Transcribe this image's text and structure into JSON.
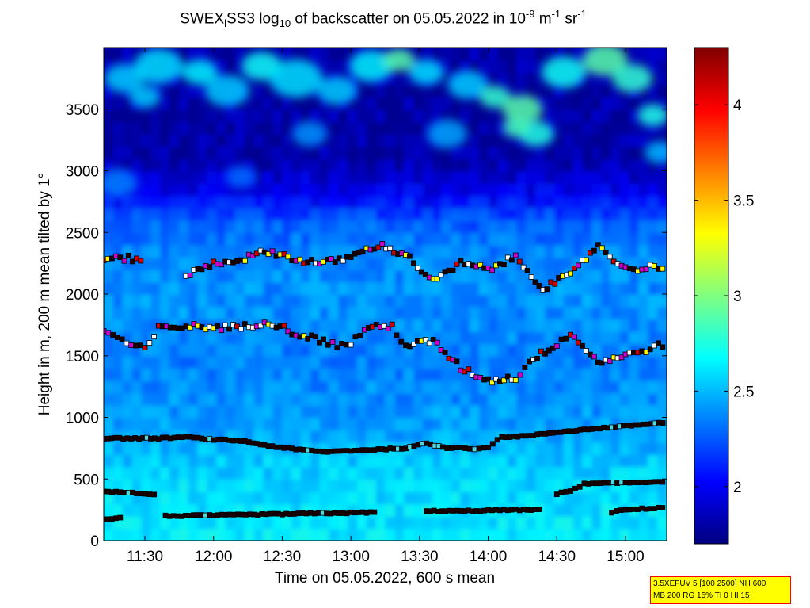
{
  "chart_data": {
    "type": "heatmap",
    "title": {
      "p1": "SWEX",
      "p1sub": "l",
      "p2": "SS3 log",
      "p2sub": "10",
      "p3": " of backscatter on 05.05.2022 in 10",
      "p3sup": "-9",
      "p4": " m",
      "p4sup": "-1",
      "p5": " sr",
      "p5sup": "-1"
    },
    "xlabel": "Time on 05.05.2022, 600 s mean",
    "ylabel": "Height in m, 200 m mean tilted by 1°",
    "x_range_hours": [
      11.2,
      15.3
    ],
    "x_ticks": [
      {
        "label": "11:30",
        "hour": 11.5
      },
      {
        "label": "12:00",
        "hour": 12.0
      },
      {
        "label": "12:30",
        "hour": 12.5
      },
      {
        "label": "13:00",
        "hour": 13.0
      },
      {
        "label": "13:30",
        "hour": 13.5
      },
      {
        "label": "14:00",
        "hour": 14.0
      },
      {
        "label": "14:30",
        "hour": 14.5
      },
      {
        "label": "15:00",
        "hour": 15.0
      }
    ],
    "ylim": [
      0,
      4000
    ],
    "y_ticks": [
      0,
      500,
      1000,
      1500,
      2000,
      2500,
      3000,
      3500
    ],
    "colorbar": {
      "range": [
        1.7,
        4.3
      ],
      "ticks": [
        2,
        2.5,
        3,
        3.5,
        4
      ],
      "colormap": "jet"
    },
    "cloud_base_layers": [
      {
        "name": "layer-near-200m",
        "points": [
          [
            11.2,
            170
          ],
          [
            11.35,
            190
          ],
          [
            11.5,
            null
          ],
          [
            11.65,
            200
          ],
          [
            12.0,
            205
          ],
          [
            12.5,
            215
          ],
          [
            13.0,
            225
          ],
          [
            13.2,
            230
          ],
          [
            13.3,
            null
          ],
          [
            13.55,
            240
          ],
          [
            13.8,
            240
          ],
          [
            14.0,
            245
          ],
          [
            14.2,
            250
          ],
          [
            14.4,
            250
          ],
          [
            14.45,
            null
          ],
          [
            14.9,
            230
          ],
          [
            15.0,
            250
          ],
          [
            15.3,
            270
          ]
        ]
      },
      {
        "name": "layer-near-400m",
        "points": [
          [
            11.2,
            400
          ],
          [
            11.35,
            390
          ],
          [
            11.5,
            380
          ],
          [
            11.6,
            375
          ],
          [
            11.61,
            null
          ],
          [
            14.5,
            380
          ],
          [
            14.6,
            400
          ],
          [
            14.7,
            460
          ],
          [
            15.0,
            470
          ],
          [
            15.3,
            480
          ]
        ]
      },
      {
        "name": "layer-near-800m",
        "points": [
          [
            11.2,
            830
          ],
          [
            11.4,
            830
          ],
          [
            11.6,
            830
          ],
          [
            11.8,
            840
          ],
          [
            12.0,
            820
          ],
          [
            12.2,
            810
          ],
          [
            12.4,
            770
          ],
          [
            12.6,
            740
          ],
          [
            12.8,
            720
          ],
          [
            13.0,
            730
          ],
          [
            13.2,
            740
          ],
          [
            13.4,
            750
          ],
          [
            13.55,
            790
          ],
          [
            13.7,
            750
          ],
          [
            13.8,
            760
          ],
          [
            13.9,
            740
          ],
          [
            14.0,
            760
          ],
          [
            14.1,
            840
          ],
          [
            14.3,
            850
          ],
          [
            14.5,
            880
          ],
          [
            14.7,
            900
          ],
          [
            14.9,
            920
          ],
          [
            15.1,
            940
          ],
          [
            15.3,
            960
          ]
        ]
      },
      {
        "name": "layer-near-1700m",
        "points": [
          [
            11.2,
            1700
          ],
          [
            11.3,
            1650
          ],
          [
            11.4,
            1580
          ],
          [
            11.5,
            1550
          ],
          [
            11.6,
            1720
          ],
          [
            11.8,
            1740
          ],
          [
            12.0,
            1730
          ],
          [
            12.2,
            1730
          ],
          [
            12.4,
            1780
          ],
          [
            12.6,
            1680
          ],
          [
            12.8,
            1620
          ],
          [
            12.9,
            1580
          ],
          [
            13.0,
            1600
          ],
          [
            13.1,
            1720
          ],
          [
            13.3,
            1740
          ],
          [
            13.4,
            1580
          ],
          [
            13.6,
            1620
          ],
          [
            13.8,
            1400
          ],
          [
            14.0,
            1300
          ],
          [
            14.2,
            1320
          ],
          [
            14.3,
            1450
          ],
          [
            14.5,
            1600
          ],
          [
            14.6,
            1680
          ],
          [
            14.8,
            1450
          ],
          [
            15.0,
            1500
          ],
          [
            15.3,
            1600
          ]
        ]
      },
      {
        "name": "layer-near-2250m",
        "points": [
          [
            11.2,
            2280
          ],
          [
            11.35,
            2290
          ],
          [
            11.5,
            2280
          ],
          [
            11.6,
            null
          ],
          [
            11.8,
            2150
          ],
          [
            12.0,
            2250
          ],
          [
            12.2,
            2280
          ],
          [
            12.4,
            2350
          ],
          [
            12.6,
            2280
          ],
          [
            12.8,
            2250
          ],
          [
            13.0,
            2300
          ],
          [
            13.2,
            2400
          ],
          [
            13.4,
            2320
          ],
          [
            13.6,
            2100
          ],
          [
            13.8,
            2250
          ],
          [
            14.0,
            2200
          ],
          [
            14.2,
            2300
          ],
          [
            14.4,
            2050
          ],
          [
            14.6,
            2150
          ],
          [
            14.8,
            2400
          ],
          [
            15.0,
            2200
          ],
          [
            15.3,
            2230
          ]
        ]
      }
    ]
  },
  "info_box": {
    "line1": "3.5XEFUV 5 [100 2500] NH 600",
    "line2": "MB 200 RG 15% TI 0 HI 15"
  }
}
